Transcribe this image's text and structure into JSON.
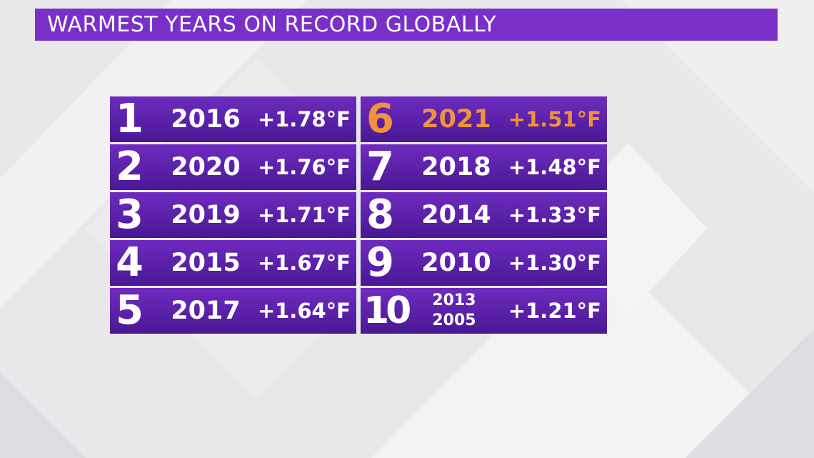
{
  "title": "WARMEST YEARS ON RECORD GLOBALLY",
  "highlight_color": "#f2923a",
  "accent_color": "#7a30c8",
  "left_column": [
    {
      "rank": "1",
      "year": "2016",
      "anomaly": "+1.78°F"
    },
    {
      "rank": "2",
      "year": "2020",
      "anomaly": "+1.76°F"
    },
    {
      "rank": "3",
      "year": "2019",
      "anomaly": "+1.71°F"
    },
    {
      "rank": "4",
      "year": "2015",
      "anomaly": "+1.67°F"
    },
    {
      "rank": "5",
      "year": "2017",
      "anomaly": "+1.64°F"
    }
  ],
  "right_column": [
    {
      "rank": "6",
      "year": "2021",
      "anomaly": "+1.51°F",
      "highlighted": true
    },
    {
      "rank": "7",
      "year": "2018",
      "anomaly": "+1.48°F"
    },
    {
      "rank": "8",
      "year": "2014",
      "anomaly": "+1.33°F"
    },
    {
      "rank": "9",
      "year": "2010",
      "anomaly": "+1.30°F"
    },
    {
      "rank": "10",
      "years": [
        "2013",
        "2005"
      ],
      "anomaly": "+1.21°F"
    }
  ]
}
